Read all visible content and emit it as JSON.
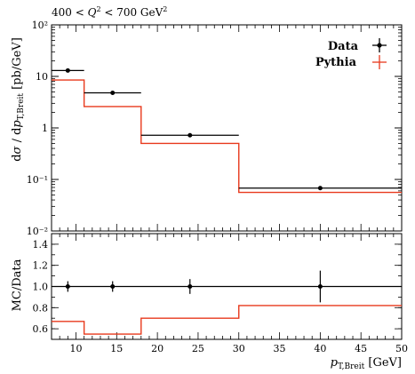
{
  "chart_data": [
    {
      "type": "line",
      "title": "400 < Q² < 700 GeV²",
      "ylabel": "dσ / dp_T,Breit [pb/GeV]",
      "yscale": "log",
      "xlim": [
        7,
        50
      ],
      "ylim": [
        0.01,
        100
      ],
      "ytick_labels": [
        "10²",
        "10",
        "1",
        "10⁻¹",
        "10⁻²"
      ],
      "legend_position": "top-right",
      "bin_edges": [
        7,
        11,
        18,
        30,
        50
      ],
      "series": [
        {
          "name": "Data",
          "style": "points with error bars",
          "color": "#000000",
          "points": [
            {
              "x": 9,
              "y": 13.0,
              "xerr": [
                7,
                11
              ]
            },
            {
              "x": 14.5,
              "y": 4.8,
              "xerr": [
                11,
                18
              ]
            },
            {
              "x": 24,
              "y": 0.72,
              "xerr": [
                18,
                30
              ]
            },
            {
              "x": 40,
              "y": 0.068,
              "xerr": [
                30,
                50
              ]
            }
          ]
        },
        {
          "name": "Pythia",
          "style": "step histogram",
          "color": "#e8391c",
          "values": [
            8.5,
            2.6,
            0.5,
            0.056
          ]
        }
      ]
    },
    {
      "type": "line",
      "title": "",
      "ylabel": "MC/Data",
      "xlabel": "p_T,Breit [GeV]",
      "xlim": [
        7,
        50
      ],
      "ylim": [
        0.5,
        1.5
      ],
      "xticks": [
        10,
        15,
        20,
        25,
        30,
        35,
        40,
        45,
        50
      ],
      "yticks": [
        0.6,
        0.8,
        1.0,
        1.2,
        1.4
      ],
      "series": [
        {
          "name": "Data",
          "style": "points with error bars",
          "color": "#000000",
          "points": [
            {
              "x": 9,
              "y": 1.0,
              "yerr": [
                0.95,
                1.05
              ]
            },
            {
              "x": 14.5,
              "y": 1.0,
              "yerr": [
                0.95,
                1.05
              ]
            },
            {
              "x": 24,
              "y": 1.0,
              "yerr": [
                0.93,
                1.07
              ]
            },
            {
              "x": 40,
              "y": 1.0,
              "yerr": [
                0.85,
                1.15
              ]
            }
          ]
        },
        {
          "name": "Pythia",
          "style": "step histogram",
          "color": "#e8391c",
          "values": [
            0.67,
            0.55,
            0.7,
            0.82
          ]
        }
      ]
    }
  ]
}
